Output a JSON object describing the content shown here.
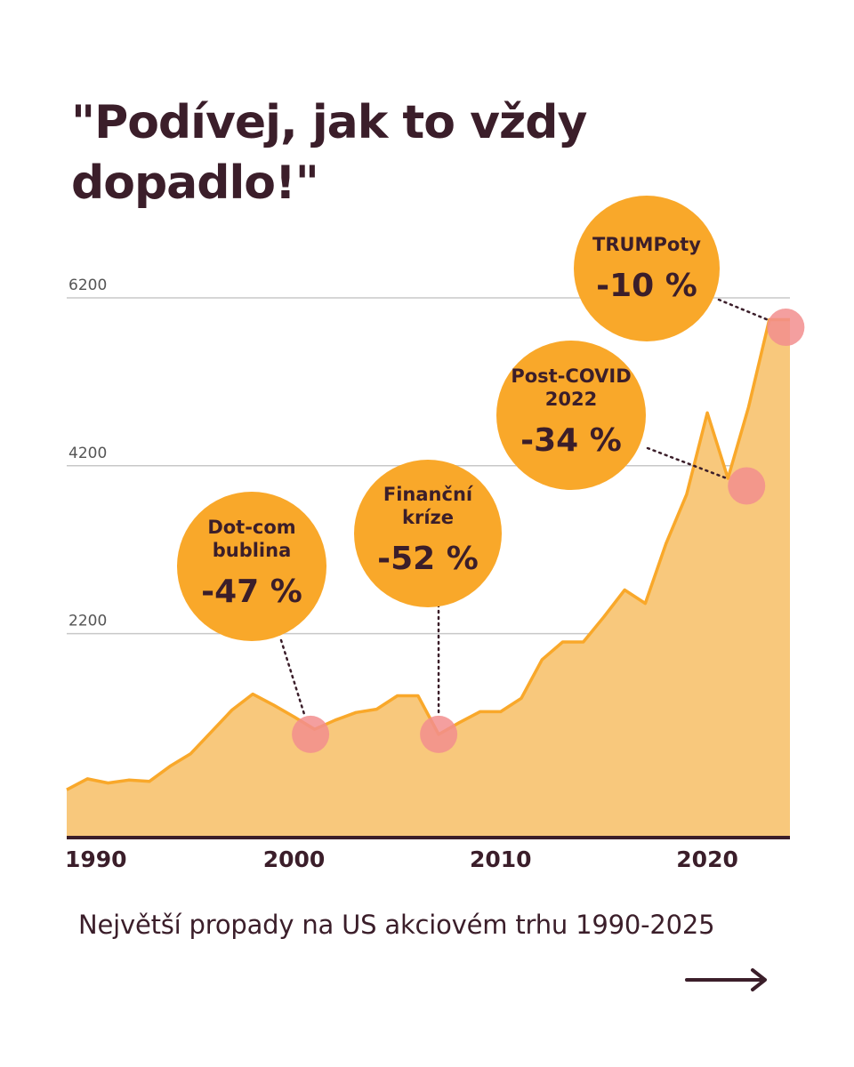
{
  "headline": {
    "line1": "\"Podívej, jak to vždy",
    "line2": "dopadlo!\""
  },
  "subtitle": "Největší propady na US akciovém trhu 1990-2025",
  "colors": {
    "text": "#3b1e2a",
    "accent": "#f9a82a",
    "fill": "#f8c87c",
    "grid": "#c8c8c8",
    "marker": "#f28e8e"
  },
  "next_icon": "arrow-right-icon",
  "chart_data": {
    "type": "area",
    "title": "",
    "xlabel": "",
    "ylabel": "",
    "xlim": [
      1989,
      2024
    ],
    "ylim": [
      0,
      6200
    ],
    "y_ticks": [
      2200,
      4200,
      6200
    ],
    "y_tick_labels": [
      "2200",
      "4200",
      "6200"
    ],
    "x_ticks": [
      1990,
      2000,
      2010,
      2020
    ],
    "x_tick_labels": [
      "1990",
      "2000",
      "2010",
      "2020"
    ],
    "grid": true,
    "series": [
      {
        "x": [
          1989,
          1990,
          1991,
          1992,
          1993,
          1994,
          1995,
          1996,
          1997,
          1998,
          1999,
          2000,
          2001,
          2002,
          2003,
          2004,
          2005,
          2006,
          2007,
          2008,
          2009,
          2010,
          2011,
          2012,
          2013,
          2014,
          2015,
          2016,
          2017,
          2018,
          2019,
          2020,
          2021,
          2022,
          2023,
          2024
        ],
        "y": [
          340,
          470,
          420,
          455,
          440,
          620,
          770,
          1030,
          1290,
          1480,
          1350,
          1210,
          1060,
          1170,
          1260,
          1300,
          1460,
          1460,
          1000,
          1140,
          1270,
          1270,
          1430,
          1890,
          2100,
          2100,
          2400,
          2720,
          2560,
          3270,
          3860,
          4830,
          4050,
          4900,
          5940,
          5940
        ]
      }
    ],
    "annotations": [
      {
        "label_lines": [
          "Dot-com",
          "bublina"
        ],
        "value": "-47 %",
        "x": 2000.8,
        "y": 1000
      },
      {
        "label_lines": [
          "Finanční",
          "kríze"
        ],
        "value": "-52 %",
        "x": 2007,
        "y": 1000
      },
      {
        "label_lines": [
          "Post-COVID",
          "2022"
        ],
        "value": "-34 %",
        "x": 2021.9,
        "y": 3960
      },
      {
        "label_lines": [
          "TRUMPoty"
        ],
        "value": "-10 %",
        "x": 2023.8,
        "y": 5850
      }
    ]
  }
}
